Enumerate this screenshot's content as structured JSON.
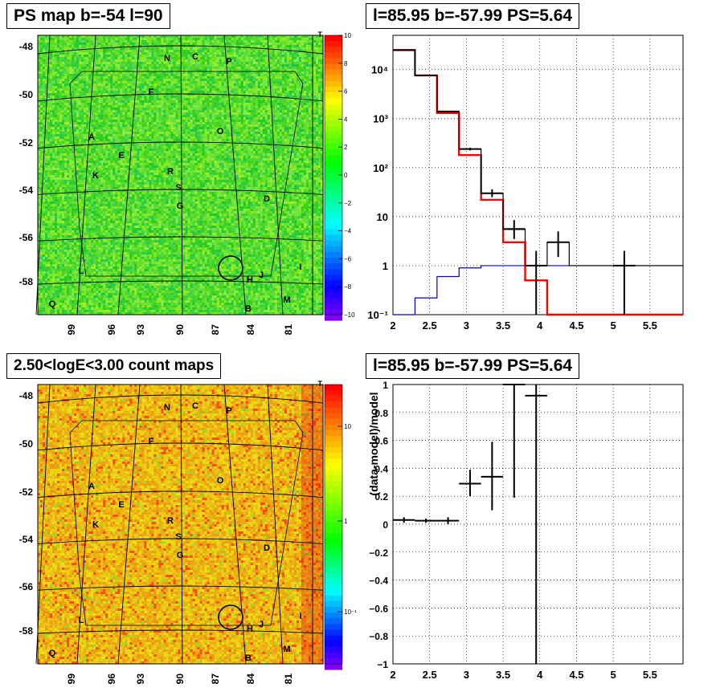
{
  "colors": {
    "hist_data": "#000000",
    "hist_model": "#ff0000",
    "hist_bkg": "#0000cc",
    "map_bg": "#22dd22"
  },
  "panels": {
    "ps_map_title": "PS map b=-54 l=90",
    "spectrum_title": "l=85.95 b=-57.99 PS=5.64",
    "count_map_title": "2.50<logE<3.00 count maps",
    "residual_title": "l=85.95 b=-57.99 PS=5.64"
  },
  "maps": {
    "lat_ticks": [
      "-48",
      "-50",
      "-52",
      "-54",
      "-56",
      "-58"
    ],
    "lon_ticks": [
      "99",
      "96",
      "93",
      "90",
      "87",
      "84",
      "81"
    ],
    "source_labels": [
      "N",
      "C",
      "P",
      "F",
      "O",
      "A",
      "E",
      "K",
      "R",
      "S",
      "G",
      "D",
      "L",
      "H",
      "J",
      "I",
      "Q",
      "B",
      "M"
    ],
    "ps_scale_ticks": [
      "10",
      "8",
      "6",
      "4",
      "2",
      "0",
      "−2",
      "−4",
      "−6",
      "−8",
      "−10"
    ],
    "count_scale_ticks": [
      "10",
      "1",
      "10⁻¹"
    ],
    "corner_marker": "T"
  },
  "chart_data": [
    {
      "type": "step",
      "title": "l=85.95 b=-57.99 PS=5.64",
      "xlim": [
        2,
        5.95
      ],
      "ylim": [
        0.1,
        50000
      ],
      "yscale": "log",
      "x_ticks": [
        "2",
        "2.5",
        "3",
        "3.5",
        "4",
        "4.5",
        "5",
        "5.5"
      ],
      "y_ticks": [
        "10⁻¹",
        "1",
        "10",
        "10²",
        "10³",
        "10⁴"
      ],
      "grid": true,
      "bin_edges": [
        2.0,
        2.3,
        2.6,
        2.9,
        3.2,
        3.5,
        3.8,
        4.1,
        4.4,
        5.95
      ],
      "series": [
        {
          "values": [
            25000,
            7600,
            1300,
            180,
            22,
            3,
            0.5,
            0.1,
            0.1
          ]
        },
        {
          "values": [
            25000,
            7600,
            1400,
            240,
            30,
            5.5,
            1.0,
            3.0,
            1.0
          ]
        },
        {
          "values": [
            0.05,
            0.22,
            0.6,
            0.9,
            1.0,
            1.0,
            1.0,
            1.0,
            1.0
          ]
        }
      ],
      "data_points": [
        {
          "x": 2.15,
          "y": 25000,
          "xerr": 0.15,
          "ylo": 24800,
          "yhi": 25200
        },
        {
          "x": 2.45,
          "y": 7600,
          "xerr": 0.15,
          "ylo": 7500,
          "yhi": 7700
        },
        {
          "x": 2.75,
          "y": 1400,
          "xerr": 0.15,
          "ylo": 1350,
          "yhi": 1450
        },
        {
          "x": 3.05,
          "y": 240,
          "xerr": 0.15,
          "ylo": 225,
          "yhi": 255
        },
        {
          "x": 3.35,
          "y": 30,
          "xerr": 0.15,
          "ylo": 25,
          "yhi": 36
        },
        {
          "x": 3.65,
          "y": 5.6,
          "xerr": 0.15,
          "ylo": 3.5,
          "yhi": 8.5
        },
        {
          "x": 3.95,
          "y": 1.0,
          "xerr": 0.15,
          "ylo": 0.1,
          "yhi": 2.0
        },
        {
          "x": 4.25,
          "y": 3.0,
          "xerr": 0.15,
          "ylo": 1.5,
          "yhi": 5.0
        },
        {
          "x": 5.15,
          "y": 1.0,
          "xerr": 0.15,
          "ylo": 0.1,
          "yhi": 2.0
        }
      ]
    },
    {
      "type": "scatter",
      "title": "l=85.95 b=-57.99 PS=5.64",
      "ylabel": "(data-model)/model",
      "xlim": [
        2,
        5.95
      ],
      "ylim": [
        -1,
        1
      ],
      "x_ticks": [
        "2",
        "2.5",
        "3",
        "3.5",
        "4",
        "4.5",
        "5",
        "5.5"
      ],
      "y_ticks": [
        "−1",
        "−0.8",
        "−0.6",
        "−0.4",
        "−0.2",
        "0",
        "0.2",
        "0.4",
        "0.6",
        "0.8",
        "1"
      ],
      "grid": true,
      "points": [
        {
          "x": 2.15,
          "y": 0.03,
          "xerr": 0.15,
          "ylo": 0.01,
          "yhi": 0.05
        },
        {
          "x": 2.45,
          "y": 0.025,
          "xerr": 0.15,
          "ylo": 0.01,
          "yhi": 0.04
        },
        {
          "x": 2.75,
          "y": 0.025,
          "xerr": 0.15,
          "ylo": 0.0,
          "yhi": 0.05
        },
        {
          "x": 3.05,
          "y": 0.29,
          "xerr": 0.15,
          "ylo": 0.2,
          "yhi": 0.39
        },
        {
          "x": 3.35,
          "y": 0.34,
          "xerr": 0.15,
          "ylo": 0.1,
          "yhi": 0.59
        },
        {
          "x": 3.65,
          "y": 1.0,
          "xerr": 0.15,
          "ylo": 0.19,
          "yhi": 1.0
        },
        {
          "x": 3.95,
          "y": 0.92,
          "xerr": 0.15,
          "ylo": -1.0,
          "yhi": 1.0
        }
      ]
    }
  ]
}
